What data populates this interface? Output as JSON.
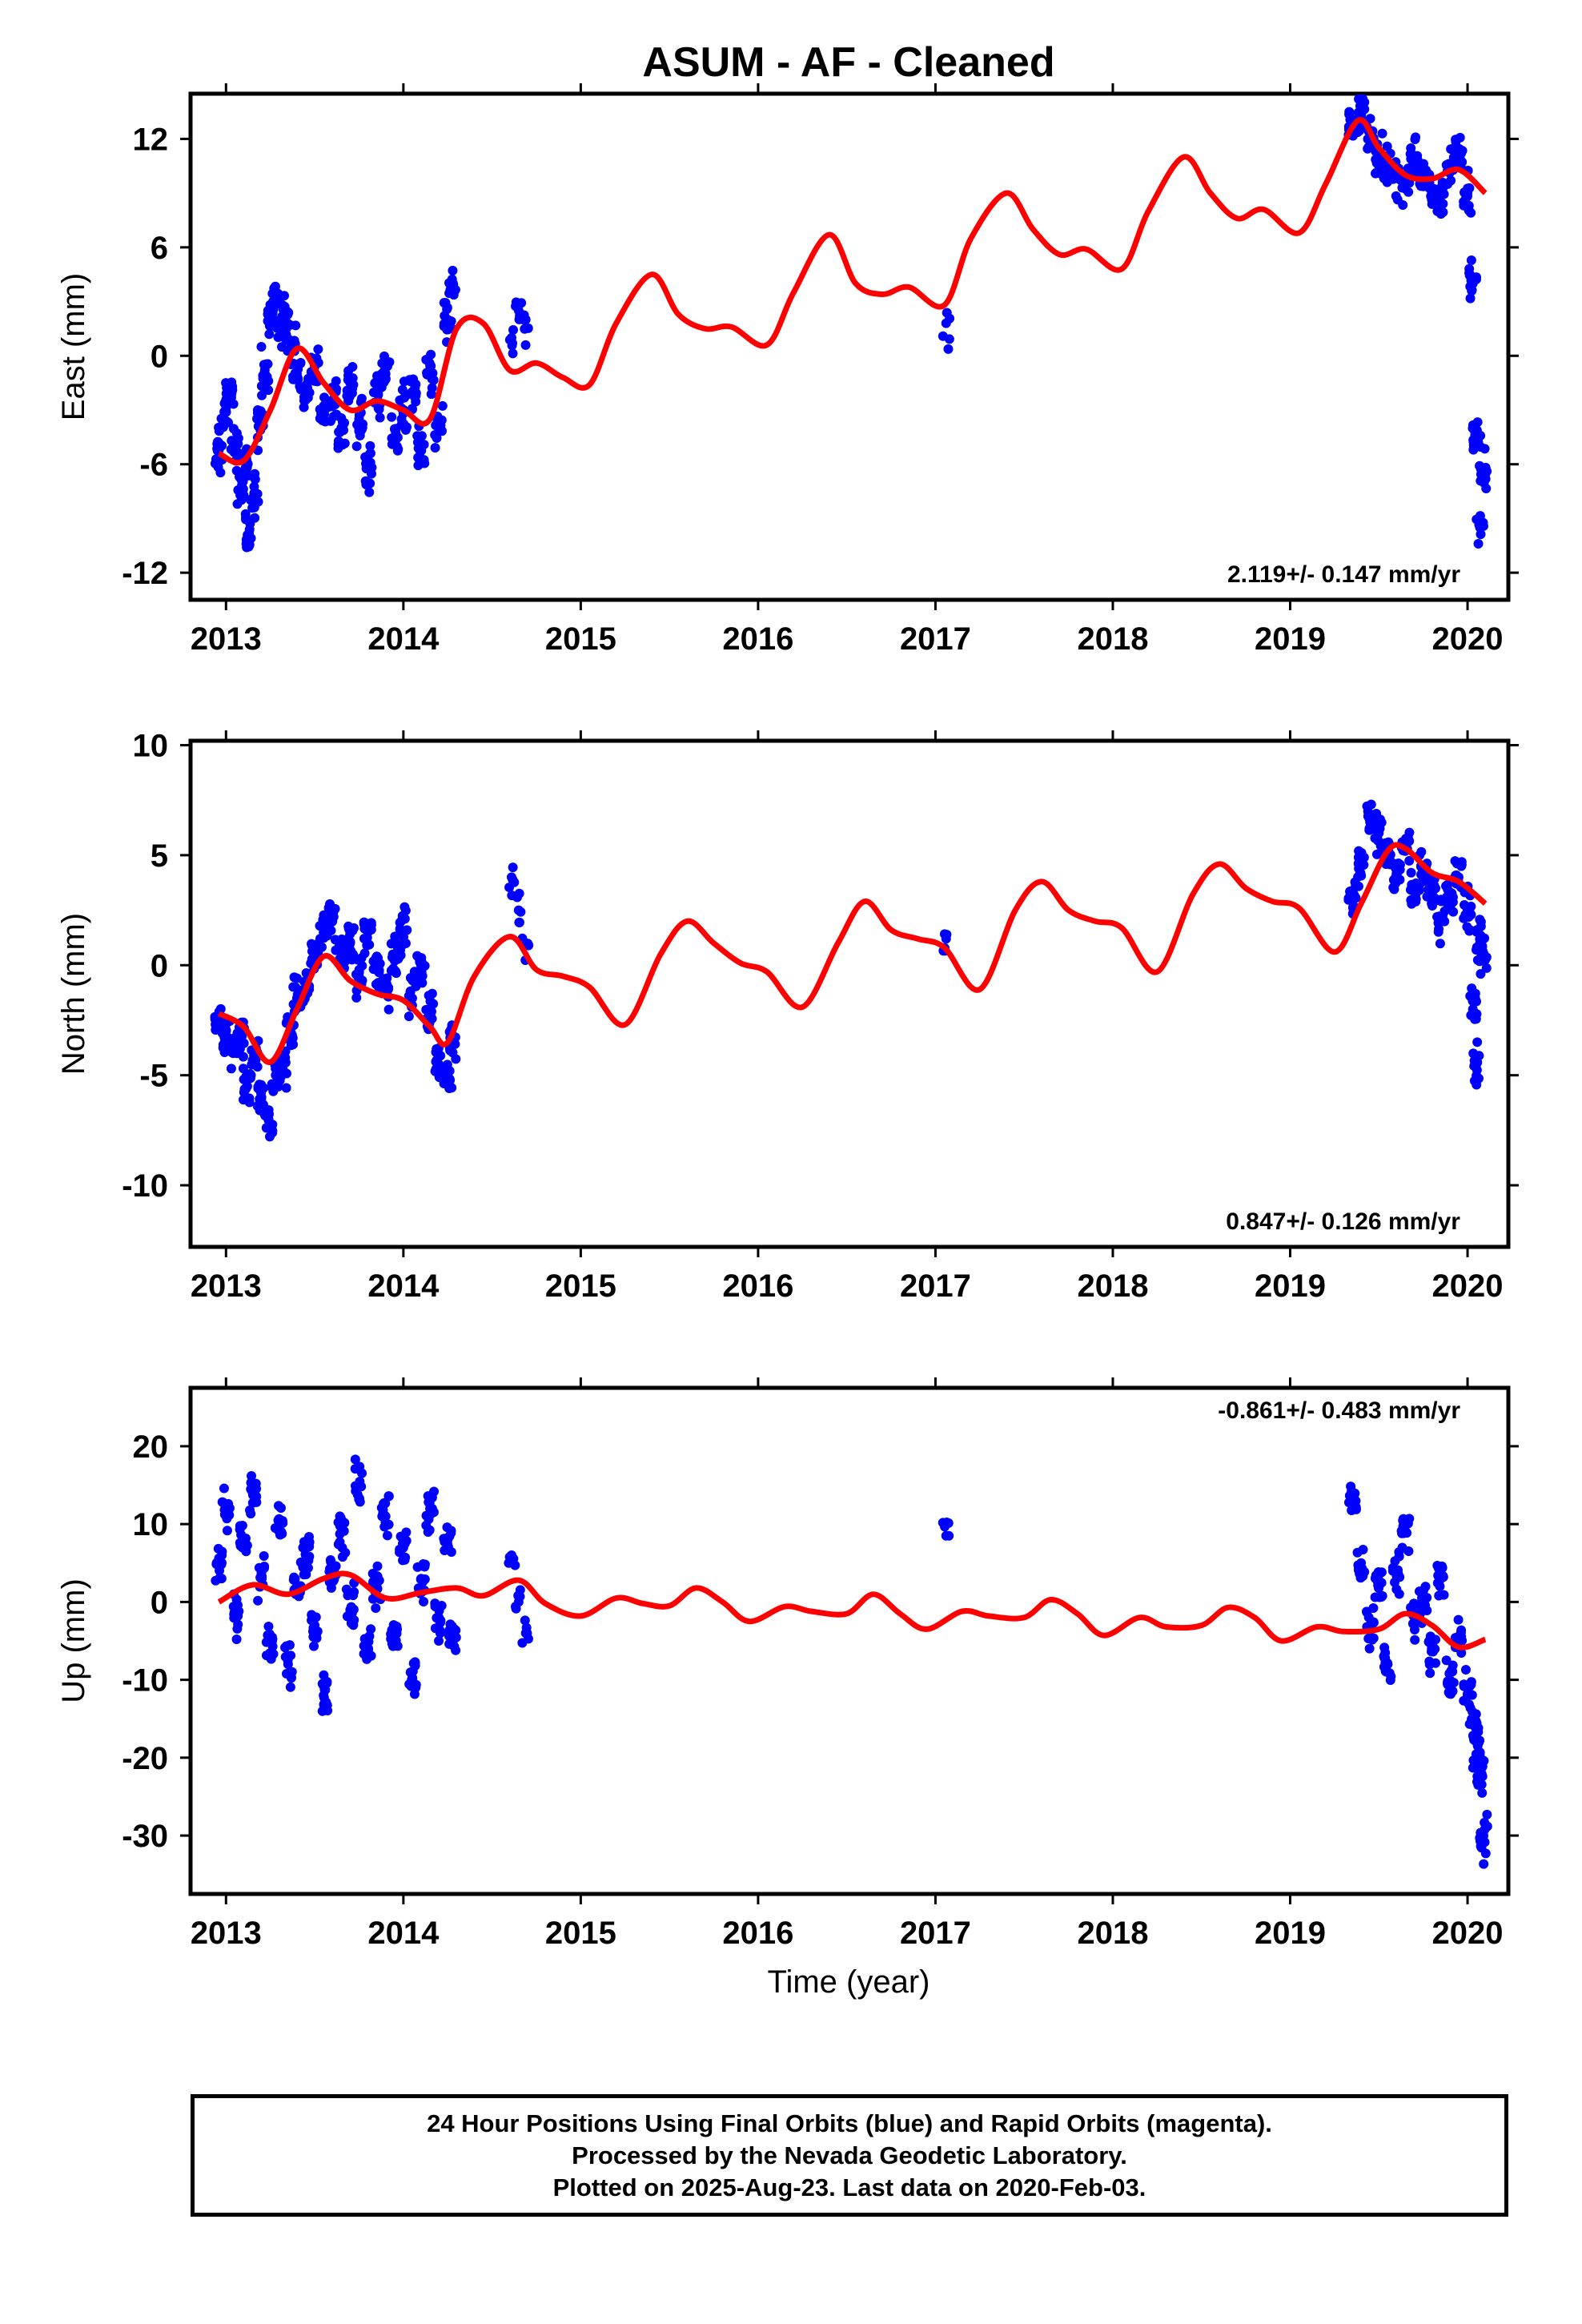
{
  "title": "ASUM  - AF - Cleaned",
  "xlabel": "Time (year)",
  "footer": [
    "24 Hour Positions Using Final Orbits (blue) and Rapid Orbits (magenta).",
    "Processed by the Nevada Geodetic Laboratory.",
    "Plotted on 2025-Aug-23. Last data on 2020-Feb-03."
  ],
  "colors": {
    "points": "#0000ff",
    "model": "#ff0000",
    "frame": "#000000"
  },
  "chart_data": [
    {
      "type": "scatter",
      "ylabel": "East (mm)",
      "rate_label": "2.119+/- 0.147 mm/yr",
      "rate_position": "bottom-right",
      "xlim": [
        2012.8,
        2020.23
      ],
      "ylim": [
        -13.5,
        14.5
      ],
      "xticks": [
        2013,
        2014,
        2015,
        2016,
        2017,
        2018,
        2019,
        2020
      ],
      "yticks": [
        -12,
        -6,
        0,
        6,
        12
      ],
      "data_coverage": [
        [
          2012.96,
          2014.28
        ],
        [
          2014.6,
          2014.7
        ],
        [
          2017.05,
          2017.07
        ],
        [
          2019.33,
          2020.09
        ]
      ],
      "series": [
        {
          "style": "points",
          "x": [
            2012.96,
            2012.99,
            2013.02,
            2013.05,
            2013.08,
            2013.11,
            2013.13,
            2013.16,
            2013.19,
            2013.22,
            2013.25,
            2013.28,
            2013.31,
            2013.34,
            2013.37,
            2013.4,
            2013.45,
            2013.5,
            2013.55,
            2013.6,
            2013.65,
            2013.7,
            2013.75,
            2013.8,
            2013.85,
            2013.9,
            2013.95,
            2014.0,
            2014.05,
            2014.1,
            2014.15,
            2014.2,
            2014.25,
            2014.28,
            2014.61,
            2014.65,
            2014.69,
            2017.06,
            2019.35,
            2019.4,
            2019.45,
            2019.5,
            2019.55,
            2019.6,
            2019.65,
            2019.7,
            2019.75,
            2019.8,
            2019.85,
            2019.9,
            2019.95,
            2020.0,
            2020.03,
            2020.05,
            2020.07,
            2020.09
          ],
          "y": [
            -5.2,
            -3.1,
            -2.0,
            -4.8,
            -7.5,
            -6.2,
            -9.8,
            -8.0,
            -3.5,
            -1.0,
            2.5,
            3.0,
            2.0,
            1.5,
            0.5,
            -1.0,
            -2.0,
            -0.5,
            -3.0,
            -2.5,
            -4.0,
            -1.5,
            -3.5,
            -6.0,
            -2.0,
            -1.0,
            -4.5,
            -3.0,
            -2.0,
            -5.0,
            -1.0,
            -3.5,
            2.0,
            4.0,
            1.0,
            2.5,
            2.0,
            1.8,
            12.5,
            13.2,
            12.0,
            11.0,
            10.5,
            10.0,
            9.5,
            11.0,
            10.0,
            9.0,
            8.5,
            10.5,
            11.0,
            9.0,
            4.0,
            -4.5,
            -9.5,
            -6.5
          ]
        },
        {
          "style": "line",
          "x": [
            2012.96,
            2013.1,
            2013.25,
            2013.4,
            2013.55,
            2013.7,
            2013.85,
            2014.0,
            2014.15,
            2014.3,
            2014.45,
            2014.6,
            2014.75,
            2014.9,
            2015.05,
            2015.2,
            2015.4,
            2015.55,
            2015.7,
            2015.85,
            2016.05,
            2016.2,
            2016.4,
            2016.55,
            2016.7,
            2016.85,
            2017.05,
            2017.2,
            2017.4,
            2017.55,
            2017.7,
            2017.85,
            2018.05,
            2018.2,
            2018.4,
            2018.55,
            2018.7,
            2018.85,
            2019.05,
            2019.2,
            2019.38,
            2019.5,
            2019.65,
            2019.8,
            2019.95,
            2020.1
          ],
          "y": [
            -5.4,
            -5.8,
            -3.0,
            0.4,
            -1.5,
            -3.0,
            -2.5,
            -3.0,
            -3.5,
            1.5,
            1.8,
            -0.8,
            -0.4,
            -1.2,
            -1.6,
            1.8,
            4.5,
            2.3,
            1.5,
            1.6,
            0.6,
            3.5,
            6.7,
            4.0,
            3.4,
            3.8,
            2.8,
            6.5,
            9.0,
            7.0,
            5.6,
            5.9,
            4.8,
            8.0,
            11.0,
            9.0,
            7.6,
            8.1,
            6.8,
            9.5,
            13.0,
            11.5,
            10.0,
            9.8,
            10.3,
            9.0
          ]
        }
      ]
    },
    {
      "type": "scatter",
      "ylabel": "North (mm)",
      "rate_label": "0.847+/- 0.126 mm/yr",
      "rate_position": "bottom-right",
      "xlim": [
        2012.8,
        2020.23
      ],
      "ylim": [
        -12.8,
        10.2
      ],
      "xticks": [
        2013,
        2014,
        2015,
        2016,
        2017,
        2018,
        2019,
        2020
      ],
      "yticks": [
        -10,
        -5,
        0,
        5,
        10
      ],
      "data_coverage": [
        [
          2012.96,
          2014.28
        ],
        [
          2014.6,
          2014.7
        ],
        [
          2017.05,
          2017.07
        ],
        [
          2019.33,
          2020.09
        ]
      ],
      "series": [
        {
          "style": "points",
          "x": [
            2012.96,
            2013.0,
            2013.04,
            2013.08,
            2013.12,
            2013.16,
            2013.2,
            2013.24,
            2013.28,
            2013.32,
            2013.36,
            2013.4,
            2013.45,
            2013.5,
            2013.55,
            2013.6,
            2013.65,
            2013.7,
            2013.75,
            2013.8,
            2013.85,
            2013.9,
            2013.95,
            2014.0,
            2014.05,
            2014.1,
            2014.15,
            2014.2,
            2014.25,
            2014.28,
            2014.61,
            2014.65,
            2014.69,
            2017.06,
            2019.35,
            2019.4,
            2019.45,
            2019.5,
            2019.55,
            2019.6,
            2019.65,
            2019.7,
            2019.75,
            2019.8,
            2019.85,
            2019.9,
            2019.95,
            2020.0,
            2020.03,
            2020.05,
            2020.07,
            2020.09
          ],
          "y": [
            -2.5,
            -3.0,
            -4.0,
            -3.5,
            -5.5,
            -4.0,
            -6.0,
            -7.0,
            -5.0,
            -4.5,
            -3.0,
            -1.5,
            -1.0,
            0.5,
            1.5,
            2.0,
            0.5,
            1.0,
            -0.5,
            1.5,
            0.0,
            -1.0,
            0.5,
            1.5,
            -1.5,
            0.0,
            -2.0,
            -4.5,
            -5.0,
            -3.5,
            4.0,
            2.5,
            1.0,
            1.2,
            3.0,
            4.5,
            6.5,
            6.0,
            5.0,
            4.0,
            5.5,
            3.5,
            4.0,
            3.0,
            2.0,
            3.0,
            4.0,
            2.5,
            -2.0,
            -4.5,
            1.0,
            0.5
          ]
        },
        {
          "style": "line",
          "x": [
            2012.96,
            2013.1,
            2013.25,
            2013.4,
            2013.55,
            2013.7,
            2013.85,
            2014.0,
            2014.15,
            2014.25,
            2014.4,
            2014.6,
            2014.75,
            2014.9,
            2015.05,
            2015.25,
            2015.45,
            2015.6,
            2015.75,
            2015.9,
            2016.05,
            2016.25,
            2016.45,
            2016.6,
            2016.75,
            2016.9,
            2017.05,
            2017.25,
            2017.45,
            2017.6,
            2017.75,
            2017.9,
            2018.05,
            2018.25,
            2018.45,
            2018.6,
            2018.75,
            2018.9,
            2019.05,
            2019.25,
            2019.4,
            2019.55,
            2019.65,
            2019.8,
            2019.95,
            2020.1
          ],
          "y": [
            -2.2,
            -2.8,
            -4.4,
            -2.0,
            0.4,
            -0.7,
            -1.3,
            -1.6,
            -2.8,
            -3.5,
            -0.5,
            1.3,
            -0.2,
            -0.5,
            -1.0,
            -2.7,
            0.5,
            2.0,
            1.0,
            0.1,
            -0.3,
            -1.9,
            1.0,
            2.9,
            1.6,
            1.2,
            0.8,
            -1.1,
            2.5,
            3.8,
            2.5,
            2.0,
            1.7,
            -0.3,
            3.2,
            4.6,
            3.5,
            2.9,
            2.6,
            0.6,
            2.8,
            5.2,
            5.3,
            4.2,
            3.8,
            2.8
          ]
        }
      ]
    },
    {
      "type": "scatter",
      "ylabel": "Up (mm)",
      "rate_label": "-0.861+/- 0.483 mm/yr",
      "rate_position": "top-right",
      "xlim": [
        2012.8,
        2020.23
      ],
      "ylim": [
        -37.5,
        27.5
      ],
      "xticks": [
        2013,
        2014,
        2015,
        2016,
        2017,
        2018,
        2019,
        2020
      ],
      "yticks": [
        -30,
        -20,
        -10,
        0,
        10,
        20
      ],
      "data_coverage": [
        [
          2012.96,
          2014.28
        ],
        [
          2014.6,
          2014.7
        ],
        [
          2017.05,
          2017.07
        ],
        [
          2019.33,
          2020.09
        ]
      ],
      "series": [
        {
          "style": "points",
          "x": [
            2012.96,
            2013.0,
            2013.05,
            2013.1,
            2013.15,
            2013.2,
            2013.25,
            2013.3,
            2013.35,
            2013.4,
            2013.45,
            2013.5,
            2013.55,
            2013.6,
            2013.65,
            2013.7,
            2013.75,
            2013.8,
            2013.85,
            2013.9,
            2013.95,
            2014.0,
            2014.05,
            2014.1,
            2014.15,
            2014.2,
            2014.25,
            2014.28,
            2014.61,
            2014.65,
            2014.69,
            2017.06,
            2019.35,
            2019.4,
            2019.45,
            2019.5,
            2019.55,
            2019.6,
            2019.65,
            2019.7,
            2019.75,
            2019.8,
            2019.85,
            2019.9,
            2019.95,
            2020.0,
            2020.03,
            2020.05,
            2020.07,
            2020.09
          ],
          "y": [
            5.0,
            12.0,
            -2.0,
            8.0,
            14.0,
            3.0,
            -5.0,
            10.0,
            -8.0,
            2.0,
            6.0,
            -3.0,
            -12.0,
            4.0,
            9.0,
            -1.0,
            15.0,
            -6.0,
            2.0,
            11.0,
            -4.0,
            7.0,
            -10.0,
            3.0,
            12.0,
            -2.0,
            8.0,
            -5.0,
            6.0,
            0.0,
            -4.0,
            8.5,
            13.0,
            5.0,
            -3.0,
            2.0,
            -8.0,
            4.0,
            10.0,
            -2.0,
            0.0,
            -6.0,
            3.0,
            -10.0,
            -5.0,
            -12.0,
            -15.0,
            -18.0,
            -22.0,
            -30.0
          ]
        },
        {
          "style": "line",
          "x": [
            2012.96,
            2013.15,
            2013.35,
            2013.55,
            2013.7,
            2013.9,
            2014.1,
            2014.3,
            2014.45,
            2014.65,
            2014.8,
            2015.0,
            2015.2,
            2015.35,
            2015.5,
            2015.65,
            2015.8,
            2015.95,
            2016.15,
            2016.3,
            2016.5,
            2016.65,
            2016.8,
            2016.95,
            2017.15,
            2017.3,
            2017.5,
            2017.65,
            2017.8,
            2017.95,
            2018.15,
            2018.3,
            2018.5,
            2018.65,
            2018.8,
            2018.95,
            2019.15,
            2019.3,
            2019.5,
            2019.65,
            2019.8,
            2019.95,
            2020.1
          ],
          "y": [
            0.0,
            2.2,
            1.0,
            3.0,
            3.5,
            0.5,
            1.2,
            1.8,
            0.8,
            2.8,
            -0.2,
            -1.8,
            0.5,
            -0.2,
            -0.5,
            1.8,
            0.0,
            -2.5,
            -0.6,
            -1.2,
            -1.5,
            1.0,
            -1.5,
            -3.5,
            -1.2,
            -1.8,
            -2.0,
            0.3,
            -1.5,
            -4.3,
            -2.0,
            -3.2,
            -3.0,
            -0.7,
            -2.0,
            -5.0,
            -3.2,
            -3.8,
            -3.5,
            -1.5,
            -3.0,
            -5.8,
            -4.8
          ]
        }
      ]
    }
  ]
}
